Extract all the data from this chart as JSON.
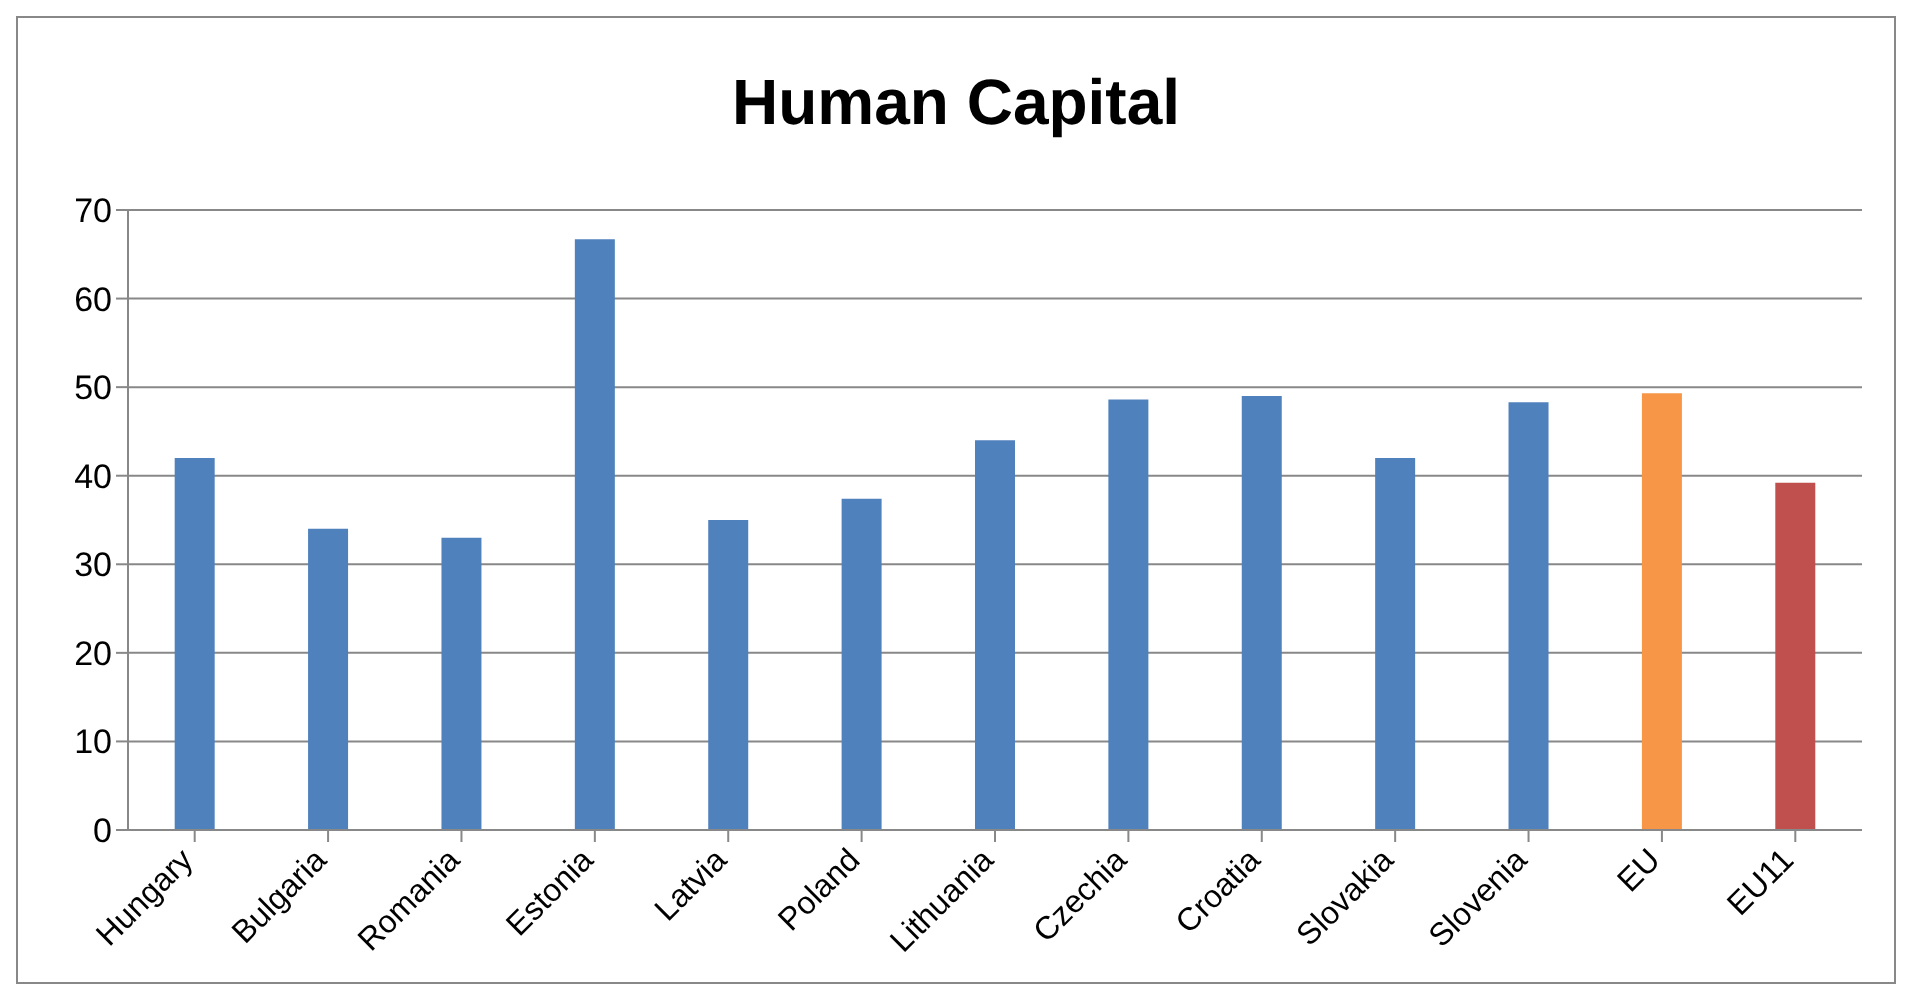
{
  "chart_data": {
    "type": "bar",
    "title": "Human Capital",
    "categories": [
      "Hungary",
      "Bulgaria",
      "Romania",
      "Estonia",
      "Latvia",
      "Poland",
      "Lithuania",
      "Czechia",
      "Croatia",
      "Slovakia",
      "Slovenia",
      "EU",
      "EU11"
    ],
    "values": [
      42,
      34,
      33,
      66.7,
      35,
      37.4,
      44,
      48.6,
      49,
      42,
      48.3,
      49.3,
      39.2
    ],
    "colors": [
      "#4f81bd",
      "#4f81bd",
      "#4f81bd",
      "#4f81bd",
      "#4f81bd",
      "#4f81bd",
      "#4f81bd",
      "#4f81bd",
      "#4f81bd",
      "#4f81bd",
      "#4f81bd",
      "#f79646",
      "#c0504d"
    ],
    "ylim": [
      0,
      70
    ],
    "yticks": [
      0,
      10,
      20,
      30,
      40,
      50,
      60,
      70
    ],
    "grid": "y"
  }
}
